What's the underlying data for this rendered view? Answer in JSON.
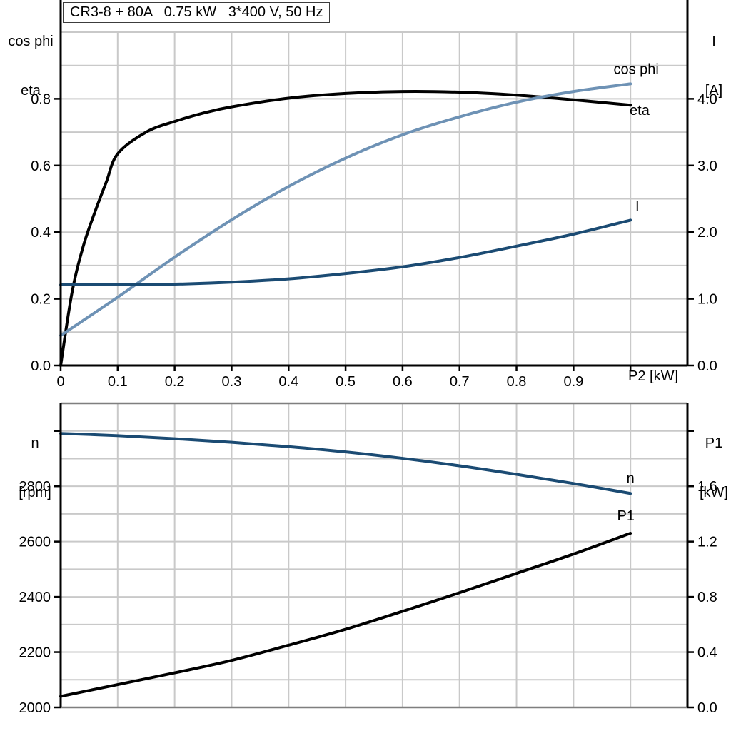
{
  "title": "CR3-8 + 80A   0.75 kW   3*400 V, 50 Hz",
  "colors": {
    "black": "#000000",
    "light_blue": "#6e92b5",
    "dark_blue": "#1b4b73",
    "grid": "#c9c9c9",
    "frame_gray": "#7f7f7f",
    "axis": "#000000",
    "background": "#ffffff"
  },
  "chart_data": [
    {
      "type": "line",
      "name": "motor-electrical-curves",
      "x_label": "P2 [kW]",
      "x_range": [
        0,
        1.1
      ],
      "x_grid_step": 0.1,
      "x_ticks": [
        {
          "v": 0.0,
          "label": "0"
        },
        {
          "v": 0.1,
          "label": "0.1"
        },
        {
          "v": 0.2,
          "label": "0.2"
        },
        {
          "v": 0.3,
          "label": "0.3"
        },
        {
          "v": 0.4,
          "label": "0.4"
        },
        {
          "v": 0.5,
          "label": "0.5"
        },
        {
          "v": 0.6,
          "label": "0.6"
        },
        {
          "v": 0.7,
          "label": "0.7"
        },
        {
          "v": 0.8,
          "label": "0.8"
        },
        {
          "v": 0.9,
          "label": "0.9"
        },
        {
          "v": 1.0,
          "label": ""
        }
      ],
      "left_axis": {
        "title_line1": "cos phi",
        "title_line2": "eta",
        "range": [
          0,
          1.0
        ],
        "grid_step": 0.1,
        "ticks": [
          {
            "v": 0.0,
            "label": "0.0"
          },
          {
            "v": 0.2,
            "label": "0.2"
          },
          {
            "v": 0.4,
            "label": "0.4"
          },
          {
            "v": 0.6,
            "label": "0.6"
          },
          {
            "v": 0.8,
            "label": "0.8"
          }
        ]
      },
      "right_axis": {
        "title_line1": "I",
        "title_line2": "[A]",
        "range": [
          0,
          5.0
        ],
        "ticks": [
          {
            "v": 0.0,
            "label": "0.0"
          },
          {
            "v": 1.0,
            "label": "1.0"
          },
          {
            "v": 2.0,
            "label": "2.0"
          },
          {
            "v": 3.0,
            "label": "3.0"
          },
          {
            "v": 4.0,
            "label": "4.0"
          }
        ]
      },
      "frame": {
        "top": "grid",
        "bottom": "black"
      },
      "series": [
        {
          "name": "eta",
          "axis": "left",
          "color": "black",
          "points": [
            [
              0,
              0
            ],
            [
              0.02,
              0.22
            ],
            [
              0.04,
              0.36
            ],
            [
              0.06,
              0.46
            ],
            [
              0.08,
              0.55
            ],
            [
              0.1,
              0.635
            ],
            [
              0.15,
              0.7
            ],
            [
              0.2,
              0.732
            ],
            [
              0.25,
              0.757
            ],
            [
              0.3,
              0.776
            ],
            [
              0.4,
              0.802
            ],
            [
              0.5,
              0.816
            ],
            [
              0.6,
              0.822
            ],
            [
              0.7,
              0.82
            ],
            [
              0.8,
              0.811
            ],
            [
              0.9,
              0.797
            ],
            [
              1.0,
              0.781
            ]
          ],
          "label": {
            "text": "eta",
            "x": 1.016,
            "y": 0.752,
            "color": "black"
          }
        },
        {
          "name": "cos phi",
          "axis": "left",
          "color": "light_blue",
          "points": [
            [
              0,
              0.09
            ],
            [
              0.1,
              0.205
            ],
            [
              0.2,
              0.325
            ],
            [
              0.3,
              0.437
            ],
            [
              0.4,
              0.537
            ],
            [
              0.5,
              0.622
            ],
            [
              0.6,
              0.692
            ],
            [
              0.7,
              0.746
            ],
            [
              0.8,
              0.79
            ],
            [
              0.9,
              0.822
            ],
            [
              1.0,
              0.845
            ]
          ],
          "label": {
            "text": "cos phi",
            "x": 1.01,
            "y": 0.875,
            "color": "light_blue"
          }
        },
        {
          "name": "I",
          "axis": "right",
          "color": "dark_blue",
          "points": [
            [
              0,
              1.21
            ],
            [
              0.1,
              1.21
            ],
            [
              0.2,
              1.22
            ],
            [
              0.3,
              1.25
            ],
            [
              0.4,
              1.3
            ],
            [
              0.5,
              1.38
            ],
            [
              0.6,
              1.48
            ],
            [
              0.7,
              1.62
            ],
            [
              0.8,
              1.79
            ],
            [
              0.9,
              1.97
            ],
            [
              1.0,
              2.18
            ]
          ],
          "label": {
            "text": "I",
            "x": 1.012,
            "y": 2.31,
            "color": "dark_blue"
          }
        }
      ]
    },
    {
      "type": "line",
      "name": "motor-speed-power-curves",
      "x_label": "",
      "x_range": [
        0,
        1.1
      ],
      "x_grid_step": 0.1,
      "x_ticks": [],
      "left_axis": {
        "title_line1": "n",
        "title_line2": "[rpm]",
        "range": [
          2000,
          3100
        ],
        "grid_step": 100,
        "ticks": [
          {
            "v": 2000,
            "label": "2000"
          },
          {
            "v": 2200,
            "label": "2200"
          },
          {
            "v": 2400,
            "label": "2400"
          },
          {
            "v": 2600,
            "label": "2600"
          },
          {
            "v": 2800,
            "label": "2800"
          },
          {
            "v": 3000,
            "label": ""
          }
        ]
      },
      "right_axis": {
        "title_line1": "P1",
        "title_line2": "[kW]",
        "range": [
          0,
          2.2
        ],
        "ticks": [
          {
            "v": 0.0,
            "label": "0.0"
          },
          {
            "v": 0.4,
            "label": "0.4"
          },
          {
            "v": 0.8,
            "label": "0.8"
          },
          {
            "v": 1.2,
            "label": "1.2"
          },
          {
            "v": 1.6,
            "label": "1.6"
          },
          {
            "v": 2.0,
            "label": ""
          }
        ]
      },
      "frame": {
        "top": "gray",
        "bottom": "gray"
      },
      "series": [
        {
          "name": "n",
          "axis": "left",
          "color": "dark_blue",
          "points": [
            [
              0,
              2991
            ],
            [
              0.1,
              2983
            ],
            [
              0.2,
              2972
            ],
            [
              0.3,
              2959
            ],
            [
              0.4,
              2943
            ],
            [
              0.5,
              2924
            ],
            [
              0.6,
              2901
            ],
            [
              0.7,
              2874
            ],
            [
              0.8,
              2843
            ],
            [
              0.9,
              2810
            ],
            [
              1.0,
              2774
            ]
          ],
          "label": {
            "text": "n",
            "x": 1.0,
            "y": 2812,
            "color": "dark_blue"
          }
        },
        {
          "name": "P1",
          "axis": "right",
          "color": "black",
          "points": [
            [
              0,
              0.08
            ],
            [
              0.1,
              0.165
            ],
            [
              0.2,
              0.25
            ],
            [
              0.3,
              0.34
            ],
            [
              0.4,
              0.45
            ],
            [
              0.5,
              0.565
            ],
            [
              0.6,
              0.695
            ],
            [
              0.7,
              0.83
            ],
            [
              0.8,
              0.97
            ],
            [
              0.9,
              1.11
            ],
            [
              1.0,
              1.26
            ]
          ],
          "label": {
            "text": "P1",
            "x": 0.992,
            "y": 1.352,
            "color": "black"
          }
        }
      ]
    }
  ]
}
